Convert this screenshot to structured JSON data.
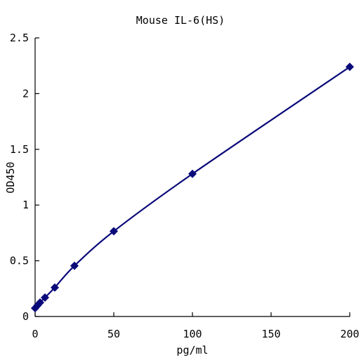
{
  "chart_data": {
    "type": "line",
    "title": "Mouse IL-6(HS)",
    "xlabel": "pg/ml",
    "ylabel": "OD450",
    "xlim": [
      0,
      200
    ],
    "ylim": [
      0,
      2.5
    ],
    "xticks": [
      0,
      50,
      100,
      150,
      200
    ],
    "yticks": [
      0,
      0.5,
      1,
      1.5,
      2,
      2.5
    ],
    "xtick_labels": [
      "0",
      "50",
      "100",
      "150",
      "200"
    ],
    "ytick_labels": [
      "0",
      "0.5",
      "1",
      "1.5",
      "2",
      "2.5"
    ],
    "grid": false,
    "series": [
      {
        "x": [
          0,
          1.56,
          3.125,
          6.25,
          12.5,
          25,
          50,
          100,
          200
        ],
        "y": [
          0.075,
          0.1,
          0.125,
          0.17,
          0.26,
          0.455,
          0.765,
          1.28,
          2.24
        ],
        "color": "#0a0a7a",
        "marker": "diamond"
      }
    ]
  }
}
